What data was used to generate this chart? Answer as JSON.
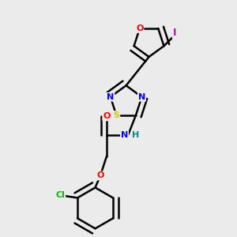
{
  "bg_color": "#ebebeb",
  "bond_color": "#000000",
  "bond_width": 1.8,
  "atom_colors": {
    "O": "#ff0000",
    "N": "#0000ff",
    "S": "#cccc00",
    "Cl": "#00bb00",
    "I": "#cc00cc",
    "C": "#000000",
    "H": "#008888"
  },
  "figsize": [
    3.0,
    3.0
  ],
  "dpi": 100
}
